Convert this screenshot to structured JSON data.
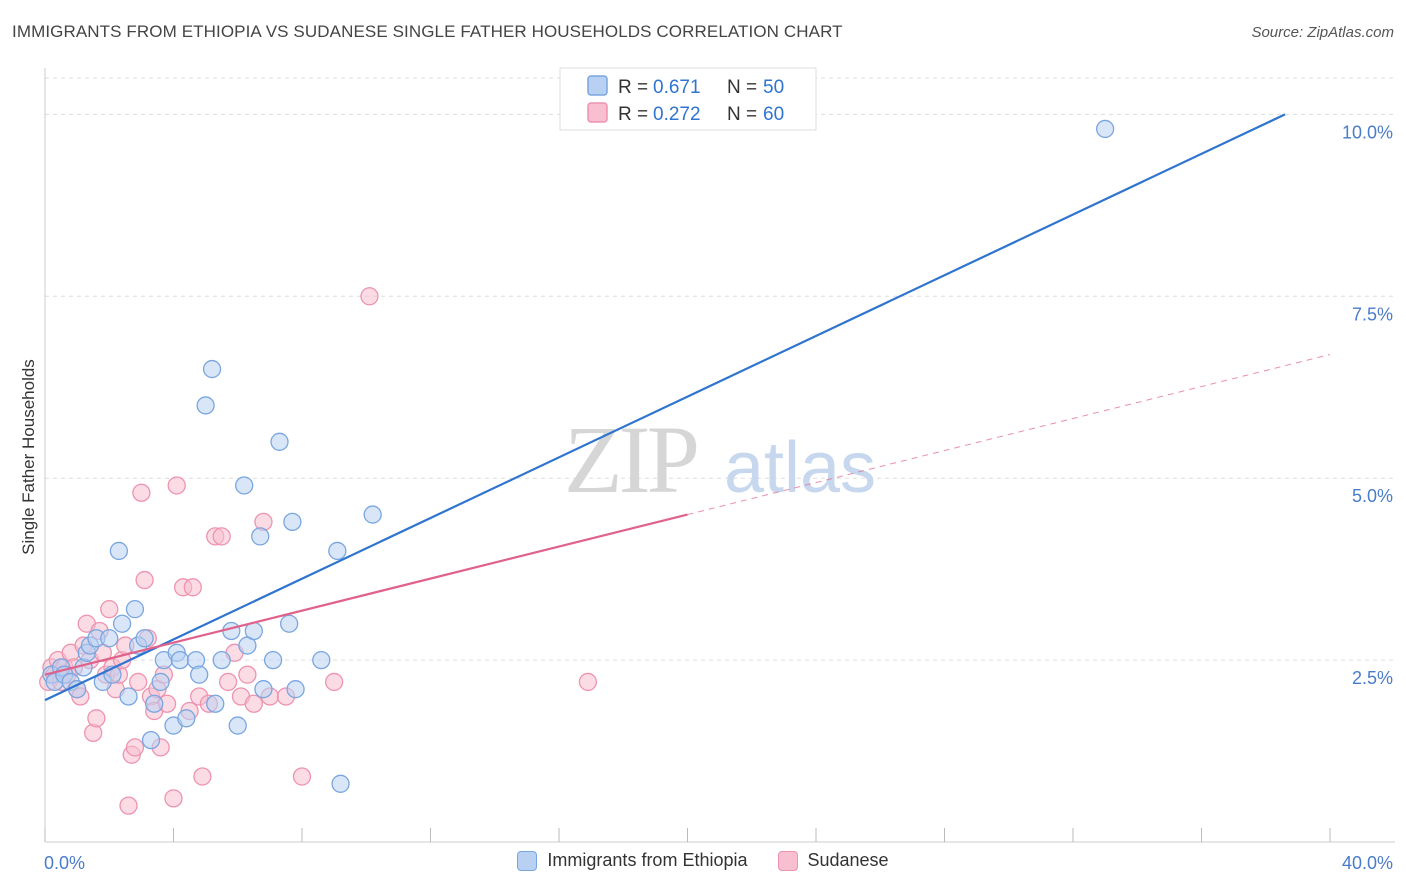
{
  "header": {
    "title": "IMMIGRANTS FROM ETHIOPIA VS SUDANESE SINGLE FATHER HOUSEHOLDS CORRELATION CHART",
    "source": "Source: ZipAtlas.com"
  },
  "watermark": {
    "zip": "ZIP",
    "atlas": "atlas"
  },
  "colors": {
    "blue_fill": "#b8d1f3",
    "blue_stroke": "#7aa6e0",
    "blue_line": "#2f74cf",
    "pink_fill": "#f7bfd0",
    "pink_stroke": "#ee93b0",
    "pink_line": "#e0628b",
    "axis_text": "#4a7cc9"
  },
  "legend_stats": [
    {
      "r_label": "R =",
      "r_value": "0.671",
      "n_label": "N =",
      "n_value": "50"
    },
    {
      "r_label": "R =",
      "r_value": "0.272",
      "n_label": "N =",
      "n_value": "60"
    }
  ],
  "chart_data": {
    "type": "scatter",
    "title": "IMMIGRANTS FROM ETHIOPIA VS SUDANESE SINGLE FATHER HOUSEHOLDS CORRELATION CHART",
    "xlabel": "",
    "ylabel": "Single Father Households",
    "xlim": [
      0,
      40
    ],
    "ylim": [
      0,
      10.5
    ],
    "x_tick_labels": [
      "0.0%",
      "40.0%"
    ],
    "y_ticks": [
      2.5,
      5.0,
      7.5,
      10.0
    ],
    "y_tick_labels": [
      "2.5%",
      "5.0%",
      "7.5%",
      "10.0%"
    ],
    "grid": true,
    "legend_placement": "top-center",
    "series": [
      {
        "name": "Immigrants from Ethiopia",
        "color": "#7aa6e0",
        "points": [
          [
            0.2,
            2.3
          ],
          [
            0.3,
            2.2
          ],
          [
            0.5,
            2.4
          ],
          [
            0.6,
            2.3
          ],
          [
            0.8,
            2.2
          ],
          [
            1.0,
            2.1
          ],
          [
            1.2,
            2.4
          ],
          [
            1.3,
            2.6
          ],
          [
            1.4,
            2.7
          ],
          [
            1.6,
            2.8
          ],
          [
            1.8,
            2.2
          ],
          [
            2.0,
            2.8
          ],
          [
            2.1,
            2.3
          ],
          [
            2.3,
            4.0
          ],
          [
            2.4,
            3.0
          ],
          [
            2.6,
            2.0
          ],
          [
            2.8,
            3.2
          ],
          [
            2.9,
            2.7
          ],
          [
            3.1,
            2.8
          ],
          [
            3.3,
            1.4
          ],
          [
            3.4,
            1.9
          ],
          [
            3.6,
            2.2
          ],
          [
            3.7,
            2.5
          ],
          [
            4.0,
            1.6
          ],
          [
            4.1,
            2.6
          ],
          [
            4.2,
            2.5
          ],
          [
            4.4,
            1.7
          ],
          [
            4.7,
            2.5
          ],
          [
            4.8,
            2.3
          ],
          [
            5.0,
            6.0
          ],
          [
            5.2,
            6.5
          ],
          [
            5.3,
            1.9
          ],
          [
            5.5,
            2.5
          ],
          [
            5.8,
            2.9
          ],
          [
            6.0,
            1.6
          ],
          [
            6.2,
            4.9
          ],
          [
            6.3,
            2.7
          ],
          [
            6.5,
            2.9
          ],
          [
            6.7,
            4.2
          ],
          [
            6.8,
            2.1
          ],
          [
            7.1,
            2.5
          ],
          [
            7.3,
            5.5
          ],
          [
            7.6,
            3.0
          ],
          [
            7.7,
            4.4
          ],
          [
            7.8,
            2.1
          ],
          [
            8.6,
            2.5
          ],
          [
            9.1,
            4.0
          ],
          [
            9.2,
            0.8
          ],
          [
            10.2,
            4.5
          ],
          [
            33.0,
            9.8
          ]
        ]
      },
      {
        "name": "Sudanese",
        "color": "#ee93b0",
        "points": [
          [
            0.1,
            2.2
          ],
          [
            0.2,
            2.4
          ],
          [
            0.3,
            2.3
          ],
          [
            0.4,
            2.5
          ],
          [
            0.5,
            2.2
          ],
          [
            0.6,
            2.4
          ],
          [
            0.7,
            2.3
          ],
          [
            0.8,
            2.6
          ],
          [
            0.9,
            2.4
          ],
          [
            1.0,
            2.1
          ],
          [
            1.1,
            2.0
          ],
          [
            1.2,
            2.7
          ],
          [
            1.3,
            3.0
          ],
          [
            1.4,
            2.5
          ],
          [
            1.5,
            1.5
          ],
          [
            1.6,
            1.7
          ],
          [
            1.7,
            2.9
          ],
          [
            1.8,
            2.6
          ],
          [
            1.9,
            2.3
          ],
          [
            2.0,
            3.2
          ],
          [
            2.1,
            2.4
          ],
          [
            2.2,
            2.1
          ],
          [
            2.3,
            2.3
          ],
          [
            2.4,
            2.5
          ],
          [
            2.5,
            2.7
          ],
          [
            2.6,
            0.5
          ],
          [
            2.7,
            1.2
          ],
          [
            2.8,
            1.3
          ],
          [
            2.9,
            2.2
          ],
          [
            3.0,
            4.8
          ],
          [
            3.1,
            3.6
          ],
          [
            3.2,
            2.8
          ],
          [
            3.3,
            2.0
          ],
          [
            3.4,
            1.8
          ],
          [
            3.5,
            2.1
          ],
          [
            3.6,
            1.3
          ],
          [
            3.7,
            2.3
          ],
          [
            3.8,
            1.9
          ],
          [
            4.0,
            0.6
          ],
          [
            4.1,
            4.9
          ],
          [
            4.3,
            3.5
          ],
          [
            4.5,
            1.8
          ],
          [
            4.6,
            3.5
          ],
          [
            4.8,
            2.0
          ],
          [
            4.9,
            0.9
          ],
          [
            5.1,
            1.9
          ],
          [
            5.3,
            4.2
          ],
          [
            5.5,
            4.2
          ],
          [
            5.7,
            2.2
          ],
          [
            5.9,
            2.6
          ],
          [
            6.1,
            2.0
          ],
          [
            6.3,
            2.3
          ],
          [
            6.5,
            1.9
          ],
          [
            6.8,
            4.4
          ],
          [
            7.0,
            2.0
          ],
          [
            7.5,
            2.0
          ],
          [
            8.0,
            0.9
          ],
          [
            9.0,
            2.2
          ],
          [
            10.1,
            7.5
          ],
          [
            16.9,
            2.2
          ]
        ]
      }
    ],
    "trendlines": [
      {
        "series": "Immigrants from Ethiopia",
        "x0": 0,
        "y0": 1.95,
        "x1": 38.6,
        "y1": 10.0,
        "style": "solid"
      },
      {
        "series": "Sudanese",
        "x0": 0,
        "y0": 2.3,
        "x1": 20.0,
        "y1": 4.5,
        "style": "solid",
        "extension": {
          "x1": 40.0,
          "y1": 6.7,
          "style": "dashed"
        }
      }
    ]
  }
}
